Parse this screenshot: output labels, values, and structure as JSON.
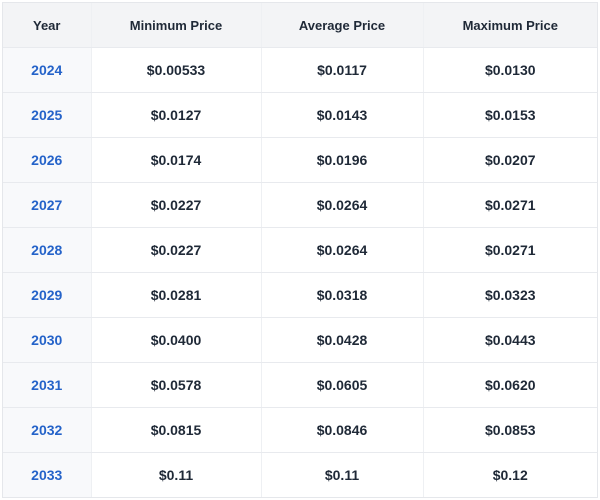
{
  "table": {
    "columns": [
      "Year",
      "Minimum Price",
      "Average Price",
      "Maximum Price"
    ],
    "rows": [
      [
        "2024",
        "$0.00533",
        "$0.0117",
        "$0.0130"
      ],
      [
        "2025",
        "$0.0127",
        "$0.0143",
        "$0.0153"
      ],
      [
        "2026",
        "$0.0174",
        "$0.0196",
        "$0.0207"
      ],
      [
        "2027",
        "$0.0227",
        "$0.0264",
        "$0.0271"
      ],
      [
        "2028",
        "$0.0227",
        "$0.0264",
        "$0.0271"
      ],
      [
        "2029",
        "$0.0281",
        "$0.0318",
        "$0.0323"
      ],
      [
        "2030",
        "$0.0400",
        "$0.0428",
        "$0.0443"
      ],
      [
        "2031",
        "$0.0578",
        "$0.0605",
        "$0.0620"
      ],
      [
        "2032",
        "$0.0815",
        "$0.0846",
        "$0.0853"
      ],
      [
        "2033",
        "$0.11",
        "$0.11",
        "$0.12"
      ]
    ]
  }
}
